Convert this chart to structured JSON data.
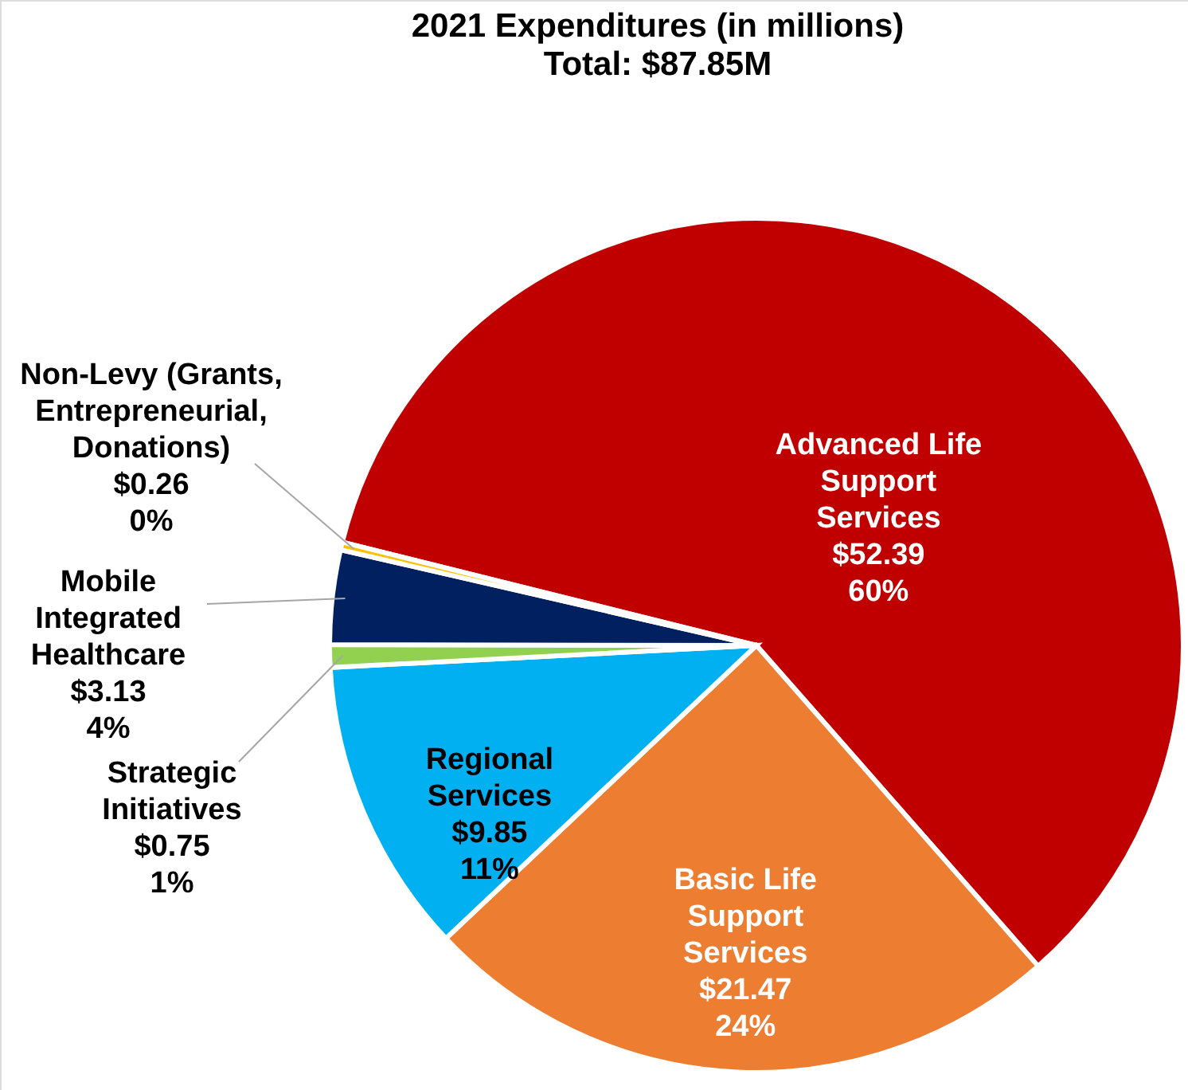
{
  "chart_data": {
    "type": "pie",
    "title": "2021 Expenditures (in millions)",
    "subtitle": "Total: $87.85M",
    "categories": [
      "Advanced Life Support Services",
      "Basic Life Support Services",
      "Regional Services",
      "Strategic Initiatives",
      "Mobile Integrated Healthcare",
      "Non-Levy (Grants, Entrepreneurial, Donations)"
    ],
    "values": [
      52.39,
      21.47,
      9.85,
      0.75,
      3.13,
      0.26
    ],
    "colors": [
      "#c00000",
      "#ed7d31",
      "#00b0f0",
      "#92d050",
      "#002060",
      "#ffc000"
    ],
    "value_labels": [
      "$52.39\n60%",
      "$21.47\n24%",
      "$9.85\n11%",
      "$0.75\n1%",
      "$3.13\n4%",
      "$0.26\n0%"
    ]
  }
}
